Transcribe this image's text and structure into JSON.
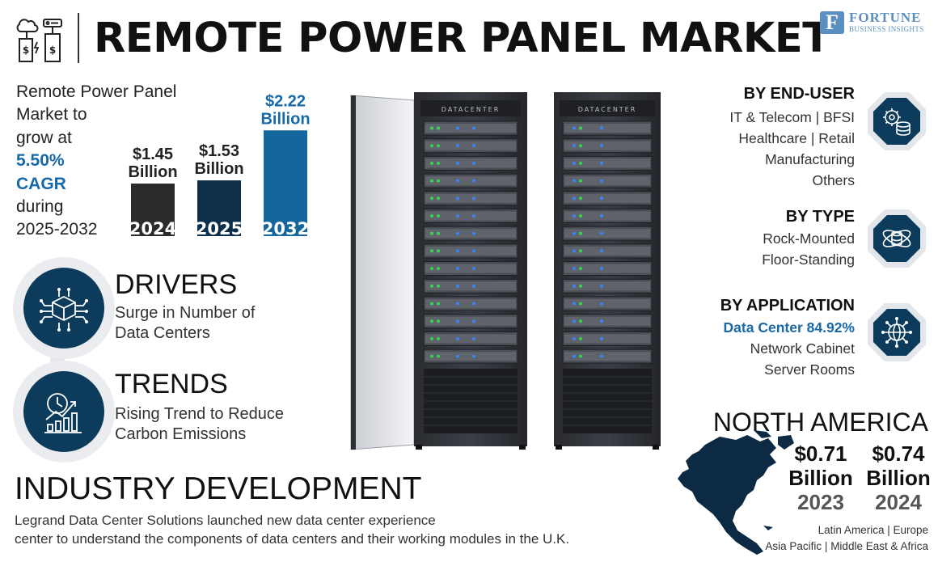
{
  "header": {
    "title": "REMOTE POWER PANEL MARKET",
    "brand_name": "FORTUNE",
    "brand_sub": "BUSINESS INSIGHTS",
    "brand_mark": "F"
  },
  "market": {
    "line1": "Remote Power Panel",
    "line2": "Market to",
    "line3": "grow at",
    "cagr_value": "5.50%",
    "cagr_label": "CAGR",
    "line4": "during",
    "period": "2025-2032"
  },
  "chart_data": {
    "type": "bar",
    "categories": [
      "2024",
      "2025",
      "2032"
    ],
    "values": [
      1.45,
      1.53,
      2.22
    ],
    "value_labels": [
      [
        "$1.45",
        "Billion"
      ],
      [
        "$1.53",
        "Billion"
      ],
      [
        "$2.22",
        "Billion"
      ]
    ],
    "colors": [
      "#2b2b2b",
      "#0e2f4a",
      "#16669e"
    ],
    "ylabel": "",
    "xlabel": ""
  },
  "drivers": {
    "title": "DRIVERS",
    "text_line1": "Surge in Number of",
    "text_line2": "Data Centers"
  },
  "trends": {
    "title": "TRENDS",
    "text_line1": "Rising Trend to Reduce",
    "text_line2": "Carbon Emissions"
  },
  "industry": {
    "title": "INDUSTRY DEVELOPMENT",
    "line1": "Legrand Data Center Solutions launched new data center experience",
    "line2": "center to understand the components of data centers and their working modules in the U.K."
  },
  "racks": {
    "label_left": "DATACENTER",
    "label_right": "DATACENTER"
  },
  "segments": {
    "end_user": {
      "title": "BY END-USER",
      "lines": [
        "IT & Telecom  |  BFSI",
        "Healthcare  |  Retail",
        "Manufacturing",
        "Others"
      ]
    },
    "type": {
      "title": "BY TYPE",
      "lines": [
        "Rock-Mounted",
        "Floor-Standing"
      ]
    },
    "application": {
      "title": "BY APPLICATION",
      "highlight": "Data Center 84.92%",
      "lines": [
        "Network Cabinet",
        "Server Rooms"
      ]
    }
  },
  "north_america": {
    "title": "NORTH AMERICA",
    "values": [
      {
        "amount": "$0.71",
        "unit": "Billion",
        "year": "2023"
      },
      {
        "amount": "$0.74",
        "unit": "Billion",
        "year": "2024"
      }
    ],
    "regions_line1": "Latin America  |  Europe",
    "regions_line2": "Asia Pacific  |  Middle East & Africa"
  },
  "icons": {
    "header": "power-panel-icon",
    "drivers": "network-cube-icon",
    "trends": "growth-chart-icon",
    "end_user": "gear-database-icon",
    "type": "database-orbit-icon",
    "application": "globe-network-icon"
  }
}
